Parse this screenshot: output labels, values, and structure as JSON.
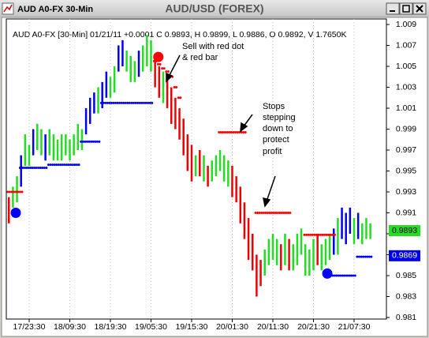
{
  "window_title": "AUD A0-FX 30-Min",
  "chart_data": {
    "type": "ohlc",
    "title": "AUD/USD (FOREX)",
    "info": "AUD A0-FX [30-Min] 01/21/11 +0.0001 C 0.9893, H 0.9899, L 0.9886, O 0.9892, V 1.7650K",
    "xlim": [
      -0.63,
      92.96
    ],
    "xticks": [
      {
        "value": 5,
        "label": "17/23:30"
      },
      {
        "value": 15,
        "label": "18/09:30"
      },
      {
        "value": 25,
        "label": "18/19:30"
      },
      {
        "value": 35,
        "label": "19/05:30"
      },
      {
        "value": 45,
        "label": "19/15:30"
      },
      {
        "value": 55,
        "label": "20/01:30"
      },
      {
        "value": 65,
        "label": "20/11:30"
      },
      {
        "value": 75,
        "label": "20/21:30"
      },
      {
        "value": 85,
        "label": "21/07:30"
      }
    ],
    "ylim": [
      0.98085,
      1.00953
    ],
    "yticks": [
      1.009,
      1.007,
      1.005,
      1.003,
      1.001,
      0.999,
      0.997,
      0.995,
      0.993,
      0.991,
      0.989,
      0.987,
      0.985,
      0.983,
      0.981
    ],
    "grid": true,
    "highs": [
      0.9925,
      0.9935,
      0.9945,
      0.9965,
      0.9985,
      0.9975,
      0.999,
      0.9995,
      0.999,
      0.9985,
      0.999,
      0.9985,
      0.998,
      0.9985,
      0.9985,
      0.998,
      0.9985,
      0.9995,
      0.999,
      1.001,
      1.002,
      1.0025,
      1.003,
      1.0035,
      1.0045,
      1.004,
      1.005,
      1.007,
      1.0075,
      1.0065,
      1.006,
      1.0055,
      1.0065,
      1.007,
      1.008,
      1.0075,
      1.006,
      1.005,
      1.0045,
      1.004,
      1.003,
      1.002,
      1.001,
      1.0,
      0.9985,
      0.9975,
      0.9965,
      0.997,
      0.9965,
      0.9955,
      0.996,
      0.9965,
      0.997,
      0.9965,
      0.996,
      0.9955,
      0.9945,
      0.9935,
      0.992,
      0.9905,
      0.989,
      0.987,
      0.9865,
      0.9875,
      0.9885,
      0.989,
      0.9885,
      0.988,
      0.989,
      0.9885,
      0.988,
      0.989,
      0.9895,
      0.988,
      0.9875,
      0.9885,
      0.989,
      0.988,
      0.9885,
      0.989,
      0.9895,
      0.9905,
      0.9915,
      0.991,
      0.9915,
      0.9905,
      0.991,
      0.99,
      0.9905,
      0.99
    ],
    "lows": [
      0.99,
      0.9915,
      0.992,
      0.9935,
      0.9955,
      0.9955,
      0.9965,
      0.997,
      0.9965,
      0.996,
      0.9965,
      0.996,
      0.996,
      0.996,
      0.9965,
      0.996,
      0.9965,
      0.997,
      0.997,
      0.9985,
      0.9995,
      1.0005,
      1.0005,
      1.001,
      1.002,
      1.002,
      1.0025,
      1.0045,
      1.005,
      1.0045,
      1.0035,
      1.0035,
      1.004,
      1.0045,
      1.005,
      1.0045,
      1.003,
      1.002,
      1.0015,
      1.001,
      0.9995,
      0.999,
      0.998,
      0.9965,
      0.995,
      0.994,
      0.9945,
      0.9945,
      0.994,
      0.9935,
      0.994,
      0.9945,
      0.995,
      0.994,
      0.9935,
      0.9925,
      0.992,
      0.99,
      0.9885,
      0.9865,
      0.9855,
      0.983,
      0.984,
      0.985,
      0.986,
      0.9865,
      0.986,
      0.9855,
      0.986,
      0.9855,
      0.9855,
      0.986,
      0.987,
      0.985,
      0.985,
      0.9855,
      0.986,
      0.9855,
      0.986,
      0.9865,
      0.987,
      0.987,
      0.9885,
      0.988,
      0.989,
      0.988,
      0.9885,
      0.988,
      0.9885,
      0.9885
    ],
    "bar_colors": [
      "#ee0000",
      "#22dd22",
      "#22dd22",
      "#0000ee",
      "#22dd22",
      "#22dd22",
      "#0000ee",
      "#22dd22",
      "#22dd22",
      "#0000ee",
      "#22dd22",
      "#22dd22",
      "#22dd22",
      "#22dd22",
      "#22dd22",
      "#22dd22",
      "#22dd22",
      "#22dd22",
      "#22dd22",
      "#0000ee",
      "#0000ee",
      "#0000ee",
      "#22dd22",
      "#0000ee",
      "#0000ee",
      "#22dd22",
      "#22dd22",
      "#0000ee",
      "#0000ee",
      "#22dd22",
      "#22dd22",
      "#22dd22",
      "#0000ee",
      "#22dd22",
      "#22dd22",
      "#22dd22",
      "#ee0000",
      "#ee0000",
      "#22dd22",
      "#ee0000",
      "#ee0000",
      "#ee0000",
      "#ee0000",
      "#ee0000",
      "#ee0000",
      "#ee0000",
      "#22dd22",
      "#ee0000",
      "#22dd22",
      "#ee0000",
      "#22dd22",
      "#22dd22",
      "#22dd22",
      "#22dd22",
      "#22dd22",
      "#ee0000",
      "#ee0000",
      "#ee0000",
      "#ee0000",
      "#ee0000",
      "#ee0000",
      "#ee0000",
      "#ee0000",
      "#22dd22",
      "#22dd22",
      "#22dd22",
      "#22dd22",
      "#ee0000",
      "#22dd22",
      "#ee0000",
      "#22dd22",
      "#22dd22",
      "#22dd22",
      "#22dd22",
      "#22dd22",
      "#22dd22",
      "#ee0000",
      "#22dd22",
      "#22dd22",
      "#22dd22",
      "#0000ee",
      "#22dd22",
      "#0000ee",
      "#0000ee",
      "#0000ee",
      "#22dd22",
      "#0000ee",
      "#22dd22",
      "#22dd22",
      "#22dd22"
    ],
    "series": [
      {
        "color": "#ff0000",
        "values": [
          0.993,
          0.993,
          0.993,
          0.993,
          null,
          null,
          null,
          null,
          null,
          null,
          null,
          null,
          null,
          null,
          null,
          null,
          null,
          null,
          null,
          null,
          null,
          null,
          null,
          null,
          null,
          null,
          null,
          null,
          null,
          null,
          null,
          null,
          null,
          null,
          null,
          null,
          1.0055,
          1.0052,
          1.0048,
          1.0045,
          1.004,
          1.003,
          1.002,
          null,
          null,
          null,
          null,
          null,
          null,
          null,
          null,
          null,
          0.9987,
          0.9987,
          0.9987,
          0.9987,
          0.9987,
          0.9987,
          0.9987,
          null,
          null,
          0.991,
          0.991,
          0.991,
          0.991,
          0.991,
          0.991,
          0.991,
          0.991,
          0.991,
          null,
          null,
          null,
          0.9889,
          0.9889,
          0.9889,
          0.9889,
          0.9889,
          0.9889,
          0.9889,
          0.9889,
          null,
          null,
          null,
          null,
          null,
          null,
          null,
          null,
          null
        ]
      },
      {
        "color": "#0000ff",
        "values": [
          null,
          null,
          null,
          0.9953,
          0.9953,
          0.9953,
          0.9953,
          0.9953,
          0.9953,
          0.9953,
          0.9956,
          0.9956,
          0.9956,
          0.9956,
          0.9956,
          0.9956,
          0.9956,
          0.9956,
          0.9978,
          0.9978,
          0.9978,
          0.9978,
          0.9978,
          1.0015,
          1.0015,
          1.0015,
          1.0015,
          1.0015,
          1.0015,
          1.0015,
          1.0015,
          1.0015,
          1.0015,
          1.0015,
          1.0015,
          1.0015,
          null,
          null,
          null,
          null,
          null,
          null,
          null,
          null,
          null,
          null,
          null,
          null,
          null,
          null,
          null,
          null,
          null,
          null,
          null,
          null,
          null,
          null,
          null,
          null,
          null,
          null,
          null,
          null,
          null,
          null,
          null,
          null,
          null,
          null,
          null,
          null,
          null,
          null,
          null,
          null,
          null,
          null,
          null,
          0.985,
          0.985,
          0.985,
          0.985,
          0.985,
          0.985,
          0.985,
          0.9868,
          0.9868,
          0.9868,
          0.9868
        ]
      }
    ],
    "signals": [
      {
        "x": 1.7,
        "y": 0.991,
        "color": "#0000ff"
      },
      {
        "x": 36.8,
        "y": 1.0059,
        "color": "#ff0000"
      },
      {
        "x": 78.4,
        "y": 0.9852,
        "color": "#0000ff"
      }
    ],
    "last_close": 0.9893,
    "last_close_color": "#22dd22",
    "last_stop": 0.9869,
    "last_stop_color": "#0000ee",
    "annotations": [
      "Sell with red dot",
      "& red bar",
      "Stops",
      "stepping",
      "down to",
      "protect",
      "profit"
    ]
  }
}
